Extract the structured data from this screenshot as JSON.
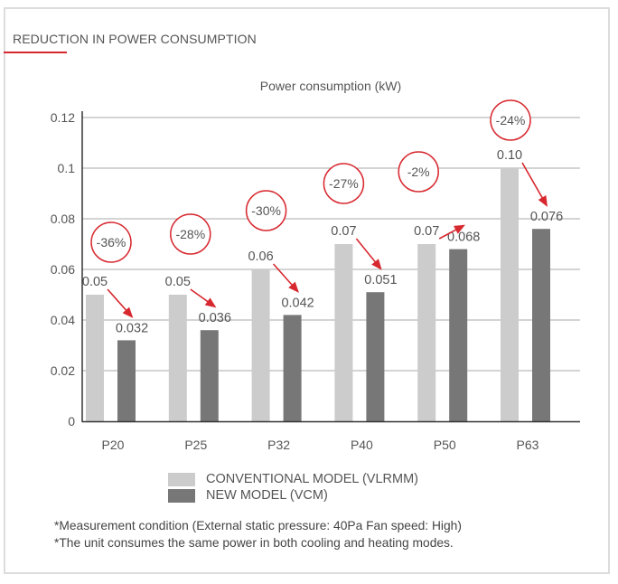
{
  "header": {
    "section_title": "REDUCTION IN POWER CONSUMPTION"
  },
  "colors": {
    "conventional": "#cccccc",
    "new": "#777777",
    "accent_red": "#d7282f",
    "grid": "#bbbbbb",
    "axis": "#333333",
    "text": "#555555"
  },
  "chart_data": {
    "type": "bar",
    "title": "Power consumption (kW)",
    "xlabel": "",
    "ylabel": "",
    "ylim": [
      0,
      0.12
    ],
    "yticks": [
      0,
      0.02,
      0.04,
      0.06,
      0.08,
      0.1,
      0.12
    ],
    "ytick_labels": [
      "0",
      "0.02",
      "0.04",
      "0.06",
      "0.08",
      "0.1",
      "0.12"
    ],
    "grid": true,
    "categories": [
      "P20",
      "P25",
      "P32",
      "P40",
      "P50",
      "P63"
    ],
    "series": [
      {
        "name": "CONVENTIONAL MODEL (VLRMM)",
        "values": [
          0.05,
          0.05,
          0.06,
          0.07,
          0.07,
          0.1
        ],
        "labels": [
          "0.05",
          "0.05",
          "0.06",
          "0.07",
          "0.07",
          "0.10"
        ]
      },
      {
        "name": "NEW MODEL (VCM)",
        "values": [
          0.032,
          0.036,
          0.042,
          0.051,
          0.068,
          0.076
        ],
        "labels": [
          "0.032",
          "0.036",
          "0.042",
          "0.051",
          "0.068",
          "0.076"
        ]
      }
    ],
    "annotations": [
      "-36%",
      "-28%",
      "-30%",
      "-27%",
      "-2%",
      "-24%"
    ],
    "legend_position": "bottom"
  },
  "legend": {
    "items": [
      {
        "label": "CONVENTIONAL MODEL (VLRMM)"
      },
      {
        "label": "NEW MODEL (VCM)"
      }
    ]
  },
  "notes": [
    "*Measurement condition (External static pressure: 40Pa Fan speed: High)",
    "*The unit consumes the same power in both cooling and heating modes."
  ]
}
